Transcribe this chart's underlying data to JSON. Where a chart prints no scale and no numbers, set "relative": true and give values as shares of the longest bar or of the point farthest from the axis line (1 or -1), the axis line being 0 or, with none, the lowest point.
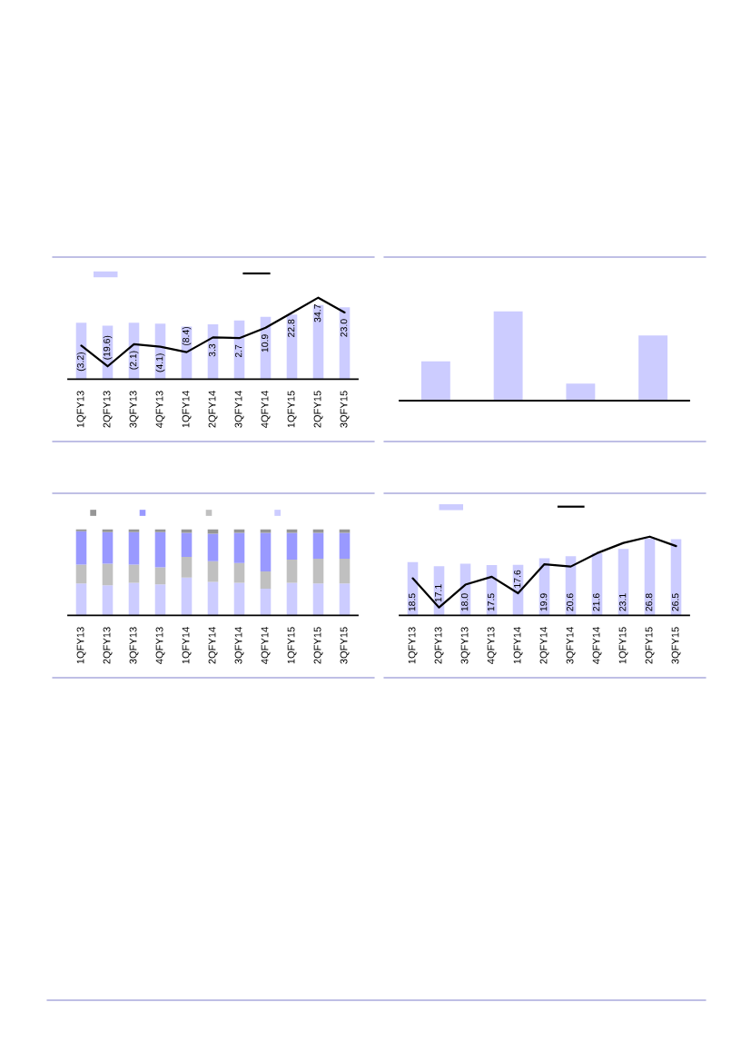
{
  "chart_data": [
    {
      "type": "bar",
      "relative": true,
      "categories": [
        "1QFY13",
        "2QFY13",
        "3QFY13",
        "4QFY13",
        "1QFY14",
        "2QFY14",
        "3QFY14",
        "4QFY14",
        "1QFY15",
        "2QFY15",
        "3QFY15"
      ],
      "color": "#ccccff",
      "values": [
        0.76,
        0.72,
        0.76,
        0.75,
        0.71,
        0.74,
        0.79,
        0.84,
        0.87,
        1,
        0.97
      ]
    },
    {
      "type": "line",
      "tick_labels": false,
      "categories": [
        "1QFY13",
        "2QFY13",
        "3QFY13",
        "4QFY13",
        "1QFY14",
        "2QFY14",
        "3QFY14",
        "4QFY14",
        "1QFY15",
        "2QFY15",
        "3QFY15"
      ],
      "color": "#000000",
      "values": [
        -3.2,
        -19.6,
        -2.1,
        -4.1,
        -8.4,
        3.3,
        2.7,
        10.9,
        22.8,
        34.7,
        23.0
      ],
      "value_labels": [
        "(3.2)",
        "(19.6)",
        "(2.1)",
        "(4.1)",
        "(8.4)",
        "3.3",
        "2.7",
        "10.9",
        "22.8",
        "34.7",
        "23.0"
      ]
    },
    {
      "type": "bar",
      "relative": true,
      "categories": [
        null,
        null,
        null,
        null
      ],
      "values": [
        0.44,
        1,
        0.19,
        0.73
      ],
      "color": "#ccccff"
    },
    {
      "type": "bar",
      "relative": true,
      "stacked": true,
      "categories": [
        "1QFY13",
        "2QFY13",
        "3QFY13",
        "4QFY13",
        "1QFY14",
        "2QFY14",
        "3QFY14",
        "4QFY14",
        "1QFY15",
        "2QFY15",
        "3QFY15"
      ],
      "series": [
        {
          "color": "#ccccff",
          "values": [
            0.37,
            0.35,
            0.38,
            0.36,
            0.44,
            0.39,
            0.38,
            0.31,
            0.38,
            0.37,
            0.37
          ]
        },
        {
          "color": "#c0c0c0",
          "values": [
            0.22,
            0.25,
            0.21,
            0.2,
            0.24,
            0.24,
            0.23,
            0.2,
            0.27,
            0.29,
            0.29
          ]
        },
        {
          "color": "#9999ff",
          "values": [
            0.39,
            0.37,
            0.38,
            0.41,
            0.28,
            0.32,
            0.35,
            0.45,
            0.31,
            0.3,
            0.3
          ]
        },
        {
          "color": "#969696",
          "values": [
            0.02,
            0.03,
            0.03,
            0.03,
            0.04,
            0.05,
            0.04,
            0.04,
            0.04,
            0.04,
            0.04
          ]
        }
      ]
    },
    {
      "type": "bar",
      "tick_labels": "x",
      "categories": [
        "1QFY13",
        "2QFY13",
        "3QFY13",
        "4QFY13",
        "1QFY14",
        "2QFY14",
        "3QFY14",
        "4QFY14",
        "1QFY15",
        "2QFY15",
        "3QFY15"
      ],
      "color": "#ccccff",
      "values": [
        18.5,
        17.1,
        18.0,
        17.5,
        17.6,
        19.9,
        20.6,
        21.6,
        23.1,
        26.8,
        26.5
      ],
      "value_labels": [
        "18.5",
        "17.1",
        "18.0",
        "17.5",
        "17.6",
        "19.9",
        "20.6",
        "21.6",
        "23.1",
        "26.8",
        "26.5"
      ]
    },
    {
      "type": "line",
      "relative": true,
      "tick_labels": false,
      "categories": [
        "1QFY13",
        "2QFY13",
        "3QFY13",
        "4QFY13",
        "1QFY14",
        "2QFY14",
        "3QFY14",
        "4QFY14",
        "1QFY15",
        "2QFY15",
        "3QFY15"
      ],
      "color": "#000000",
      "values": [
        0.47,
        0.1,
        0.39,
        0.49,
        0.28,
        0.65,
        0.62,
        0.79,
        0.92,
        1,
        0.88
      ]
    }
  ]
}
